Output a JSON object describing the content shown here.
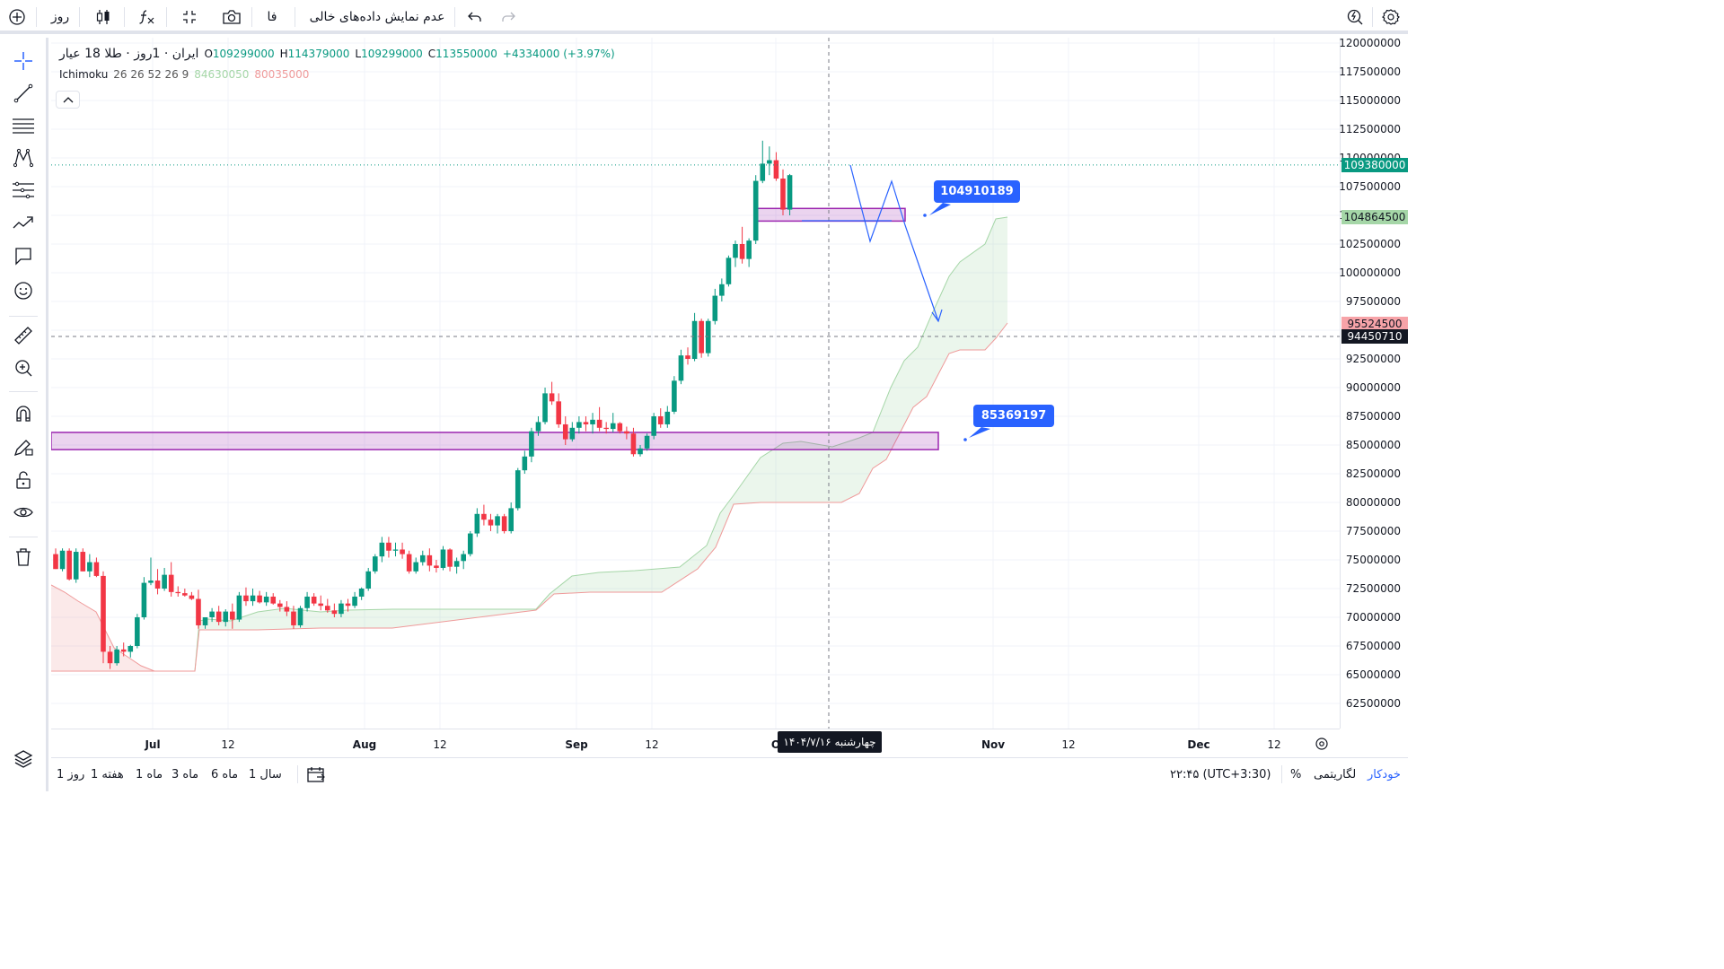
{
  "topbar": {
    "interval": "روز",
    "language": "فا",
    "hide_empty_label": "عدم نمایش داده‌های خالی"
  },
  "legend": {
    "symbol": "ایران · 1روز · طلا 18 عیار",
    "open_label": "O",
    "open": "109299000",
    "high_label": "H",
    "high": "114379000",
    "low_label": "L",
    "low": "109299000",
    "close_label": "C",
    "close": "113550000",
    "change": "+4334000 (+3.97%)",
    "indicator_name": "Ichimoku",
    "indicator_params": "26 26 52 26 9",
    "indicator_val1": "84630050",
    "indicator_val2": "80035000"
  },
  "colors": {
    "up": "#089981",
    "down": "#f23645",
    "accent": "#2962ff",
    "zone": "#9c27b0",
    "cloud_up": "#a5d6a7",
    "cloud_down": "#ef9a9a"
  },
  "price_axis": {
    "labels": [
      "120000000",
      "117500000",
      "115000000",
      "112500000",
      "110000000",
      "107500000",
      "105000000",
      "102500000",
      "100000000",
      "97500000",
      "95000000",
      "92500000",
      "90000000",
      "87500000",
      "85000000",
      "82500000",
      "80000000",
      "77500000",
      "75000000",
      "72500000",
      "70000000",
      "67500000",
      "65000000",
      "62500000"
    ],
    "last_price": "109380000",
    "span_a_tag": "104864500",
    "span_b_tag": "95524500",
    "crosshair_price": "94450710"
  },
  "time_axis": {
    "labels": [
      {
        "text": "Jul",
        "month": true
      },
      {
        "text": "12",
        "month": false
      },
      {
        "text": "Aug",
        "month": true
      },
      {
        "text": "12",
        "month": false
      },
      {
        "text": "Sep",
        "month": true
      },
      {
        "text": "12",
        "month": false
      },
      {
        "text": "O",
        "month": true
      },
      {
        "text": "Nov",
        "month": true
      },
      {
        "text": "12",
        "month": false
      },
      {
        "text": "Dec",
        "month": true
      },
      {
        "text": "12",
        "month": false
      }
    ],
    "cursor_date": "چهارشنبه ۱۴۰۴/۷/۱۶"
  },
  "annotations": {
    "upper_callout": "104910189",
    "lower_callout": "85369197"
  },
  "bottombar": {
    "ranges": [
      "روز 1",
      "هفته 1",
      "ماه 1",
      "ماه 3",
      "ماه 6",
      "سال 1"
    ],
    "time": "۲۲:۴۵ (UTC+3:30)",
    "percent": "%",
    "log": "لگاریتمی",
    "auto": "خودکار"
  },
  "chart_data": {
    "type": "candlestick",
    "title": "ایران · 1روز · طلا 18 عیار",
    "ylim": [
      61000000,
      121000000
    ],
    "dates": [
      "2025-06-24",
      "2025-06-25",
      "2025-06-26",
      "2025-06-27",
      "2025-06-28",
      "2025-06-29",
      "2025-06-30",
      "2025-07-01",
      "2025-07-02",
      "2025-07-03",
      "2025-07-04",
      "2025-07-05",
      "2025-07-06",
      "2025-07-07",
      "2025-07-08",
      "2025-07-09",
      "2025-07-10",
      "2025-07-11",
      "2025-07-12",
      "2025-07-13",
      "2025-07-14",
      "2025-07-15",
      "2025-07-16",
      "2025-07-17",
      "2025-07-18",
      "2025-07-19",
      "2025-07-20",
      "2025-07-21",
      "2025-07-22",
      "2025-07-23",
      "2025-07-24",
      "2025-07-25",
      "2025-07-26",
      "2025-07-27",
      "2025-07-28",
      "2025-07-29",
      "2025-07-30",
      "2025-07-31",
      "2025-08-01",
      "2025-08-02",
      "2025-08-03",
      "2025-08-04",
      "2025-08-05",
      "2025-08-06",
      "2025-08-07",
      "2025-08-08",
      "2025-08-09",
      "2025-08-10",
      "2025-08-11",
      "2025-08-12",
      "2025-08-13",
      "2025-08-14",
      "2025-08-15",
      "2025-08-16",
      "2025-08-17",
      "2025-08-18",
      "2025-08-19",
      "2025-08-20",
      "2025-08-21",
      "2025-08-22",
      "2025-08-23",
      "2025-08-24",
      "2025-08-25",
      "2025-08-26",
      "2025-08-27",
      "2025-08-28",
      "2025-08-29",
      "2025-08-30",
      "2025-08-31",
      "2025-09-01",
      "2025-09-02",
      "2025-09-03",
      "2025-09-04",
      "2025-09-05",
      "2025-09-06",
      "2025-09-07",
      "2025-09-08",
      "2025-09-09",
      "2025-09-10",
      "2025-09-11",
      "2025-09-12",
      "2025-09-13",
      "2025-09-14",
      "2025-09-15",
      "2025-09-16",
      "2025-09-17",
      "2025-09-18",
      "2025-09-19",
      "2025-09-20",
      "2025-09-21",
      "2025-09-22",
      "2025-09-23",
      "2025-09-24",
      "2025-09-25",
      "2025-09-26",
      "2025-09-27",
      "2025-09-28",
      "2025-09-29",
      "2025-09-30",
      "2025-10-01",
      "2025-10-02",
      "2025-10-03",
      "2025-10-04",
      "2025-10-05",
      "2025-10-06",
      "2025-10-07",
      "2025-10-08",
      "2025-10-09",
      "2025-10-10",
      "2025-10-11",
      "2025-10-12"
    ],
    "candles": [
      [
        75500000,
        76000000,
        74200000,
        74200000
      ],
      [
        74200000,
        76000000,
        74000000,
        75800000
      ],
      [
        75800000,
        76000000,
        73200000,
        73300000
      ],
      [
        73300000,
        76000000,
        73000000,
        75700000
      ],
      [
        75700000,
        76000000,
        74000000,
        74000000
      ],
      [
        74000000,
        75500000,
        73500000,
        74800000
      ],
      [
        74800000,
        75200000,
        73500000,
        73600000
      ],
      [
        73600000,
        74000000,
        66000000,
        67000000
      ],
      [
        67000000,
        67500000,
        65500000,
        66000000
      ],
      [
        66000000,
        67500000,
        65800000,
        67200000
      ],
      [
        67200000,
        67800000,
        66600000,
        67000000
      ],
      [
        67000000,
        67600000,
        66500000,
        67500000
      ],
      [
        67500000,
        70300000,
        67300000,
        70000000
      ],
      [
        70000000,
        73500000,
        69800000,
        73000000
      ],
      [
        73000000,
        75200000,
        72800000,
        73200000
      ],
      [
        73200000,
        74200000,
        72000000,
        72500000
      ],
      [
        72500000,
        74300000,
        72300000,
        73700000
      ],
      [
        73700000,
        74800000,
        71800000,
        72200000
      ],
      [
        72200000,
        72700000,
        71800000,
        72100000
      ],
      [
        72100000,
        72500000,
        71800000,
        71900000
      ],
      [
        71900000,
        72200000,
        71500000,
        71600000
      ],
      [
        71600000,
        72400000,
        69000000,
        69300000
      ],
      [
        69300000,
        70000000,
        69000000,
        70000000
      ],
      [
        70000000,
        70800000,
        69600000,
        70500000
      ],
      [
        70500000,
        71000000,
        69300000,
        69600000
      ],
      [
        69600000,
        70700000,
        69200000,
        70500000
      ],
      [
        70500000,
        71200000,
        69000000,
        69800000
      ],
      [
        69800000,
        72200000,
        69600000,
        71900000
      ],
      [
        71900000,
        72600000,
        71000000,
        71400000
      ],
      [
        71400000,
        72500000,
        71000000,
        71900000
      ],
      [
        71900000,
        72300000,
        71200000,
        71300000
      ],
      [
        71300000,
        72200000,
        71000000,
        71800000
      ],
      [
        71800000,
        72100000,
        71100000,
        71200000
      ],
      [
        71200000,
        71500000,
        70500000,
        70900000
      ],
      [
        70900000,
        71400000,
        70100000,
        70500000
      ],
      [
        70500000,
        71000000,
        69000000,
        69300000
      ],
      [
        69300000,
        71000000,
        69100000,
        70800000
      ],
      [
        70800000,
        72200000,
        70500000,
        71800000
      ],
      [
        71800000,
        72100000,
        71000000,
        71200000
      ],
      [
        71200000,
        71900000,
        70600000,
        71000000
      ],
      [
        71000000,
        71600000,
        70400000,
        70600000
      ],
      [
        70600000,
        71200000,
        70000000,
        70300000
      ],
      [
        70300000,
        71500000,
        70000000,
        71200000
      ],
      [
        71200000,
        71600000,
        70500000,
        71000000
      ],
      [
        71000000,
        72200000,
        70800000,
        71800000
      ],
      [
        71800000,
        72600000,
        71500000,
        72500000
      ],
      [
        72500000,
        74300000,
        72300000,
        74000000
      ],
      [
        74000000,
        75500000,
        73800000,
        75300000
      ],
      [
        75300000,
        77000000,
        74800000,
        76500000
      ],
      [
        76500000,
        77000000,
        75200000,
        75800000
      ],
      [
        75800000,
        76500000,
        75300000,
        75900000
      ],
      [
        75900000,
        76500000,
        75100000,
        75500000
      ],
      [
        75500000,
        75800000,
        73800000,
        74000000
      ],
      [
        74000000,
        75200000,
        73800000,
        74800000
      ],
      [
        74800000,
        75800000,
        74500000,
        75400000
      ],
      [
        75400000,
        76000000,
        74000000,
        74500000
      ],
      [
        74500000,
        75000000,
        73900000,
        74300000
      ],
      [
        74300000,
        76200000,
        74100000,
        75900000
      ],
      [
        75900000,
        76000000,
        74000000,
        74400000
      ],
      [
        74400000,
        75200000,
        73800000,
        74900000
      ],
      [
        74900000,
        75800000,
        74200000,
        75500000
      ],
      [
        75500000,
        77500000,
        75300000,
        77300000
      ],
      [
        77300000,
        79500000,
        77000000,
        79000000
      ],
      [
        79000000,
        79800000,
        78000000,
        78500000
      ],
      [
        78500000,
        79000000,
        77500000,
        78000000
      ],
      [
        78000000,
        79000000,
        77300000,
        78800000
      ],
      [
        78800000,
        79000000,
        77300000,
        77500000
      ],
      [
        77500000,
        80000000,
        77300000,
        79500000
      ],
      [
        79500000,
        83000000,
        79300000,
        82800000
      ],
      [
        82800000,
        84500000,
        82500000,
        84000000
      ],
      [
        84000000,
        86500000,
        83500000,
        86200000
      ],
      [
        86200000,
        87500000,
        85800000,
        87000000
      ],
      [
        87000000,
        90000000,
        86800000,
        89500000
      ],
      [
        89500000,
        90500000,
        88500000,
        88800000
      ],
      [
        88800000,
        89500000,
        86500000,
        86800000
      ],
      [
        86800000,
        87500000,
        85000000,
        85500000
      ],
      [
        85500000,
        87000000,
        85300000,
        86500000
      ],
      [
        86500000,
        87500000,
        86000000,
        87000000
      ],
      [
        87000000,
        87500000,
        86200000,
        86800000
      ],
      [
        86800000,
        87800000,
        86000000,
        87200000
      ],
      [
        87200000,
        88300000,
        86200000,
        86500000
      ],
      [
        86500000,
        87000000,
        86000000,
        86400000
      ],
      [
        86400000,
        87800000,
        86100000,
        86900000
      ],
      [
        86900000,
        87000000,
        86000000,
        86200000
      ],
      [
        86200000,
        86600000,
        85500000,
        86000000
      ],
      [
        86000000,
        86500000,
        84000000,
        84200000
      ],
      [
        84200000,
        85000000,
        84000000,
        84700000
      ],
      [
        84700000,
        86000000,
        84500000,
        85800000
      ],
      [
        85800000,
        87800000,
        85500000,
        87500000
      ],
      [
        87500000,
        88200000,
        86500000,
        86800000
      ],
      [
        86800000,
        88400000,
        86500000,
        87900000
      ],
      [
        87900000,
        91000000,
        87700000,
        90600000
      ],
      [
        90600000,
        93300000,
        90300000,
        92800000
      ],
      [
        92800000,
        93500000,
        92000000,
        92500000
      ],
      [
        92500000,
        96500000,
        92300000,
        95800000
      ],
      [
        95800000,
        96000000,
        92600000,
        93000000
      ],
      [
        93000000,
        96000000,
        92700000,
        95800000
      ],
      [
        95800000,
        98600000,
        95500000,
        98000000
      ],
      [
        98000000,
        99500000,
        97500000,
        99000000
      ],
      [
        99000000,
        101500000,
        98800000,
        101300000
      ],
      [
        101300000,
        102800000,
        100500000,
        102500000
      ],
      [
        102500000,
        104000000,
        100800000,
        101200000
      ],
      [
        101200000,
        103000000,
        100500000,
        102800000
      ],
      [
        102800000,
        108500000,
        102500000,
        108000000
      ],
      [
        108000000,
        111500000,
        107800000,
        109500000
      ],
      [
        109500000,
        111000000,
        108500000,
        109800000
      ],
      [
        109800000,
        110500000,
        108000000,
        108200000
      ],
      [
        108200000,
        109000000,
        105000000,
        105500000
      ],
      [
        105500000,
        108600000,
        105000000,
        108500000
      ]
    ],
    "ichimoku": {
      "params": "26 26 52 26 9",
      "span_a_last": 104864500,
      "span_b_last": 95524500
    },
    "drawings": {
      "support_zone": [
        84600000,
        86100000
      ],
      "resistance_zone": [
        104500000,
        105600000
      ],
      "callout_values": [
        104910189,
        85369197
      ]
    }
  }
}
